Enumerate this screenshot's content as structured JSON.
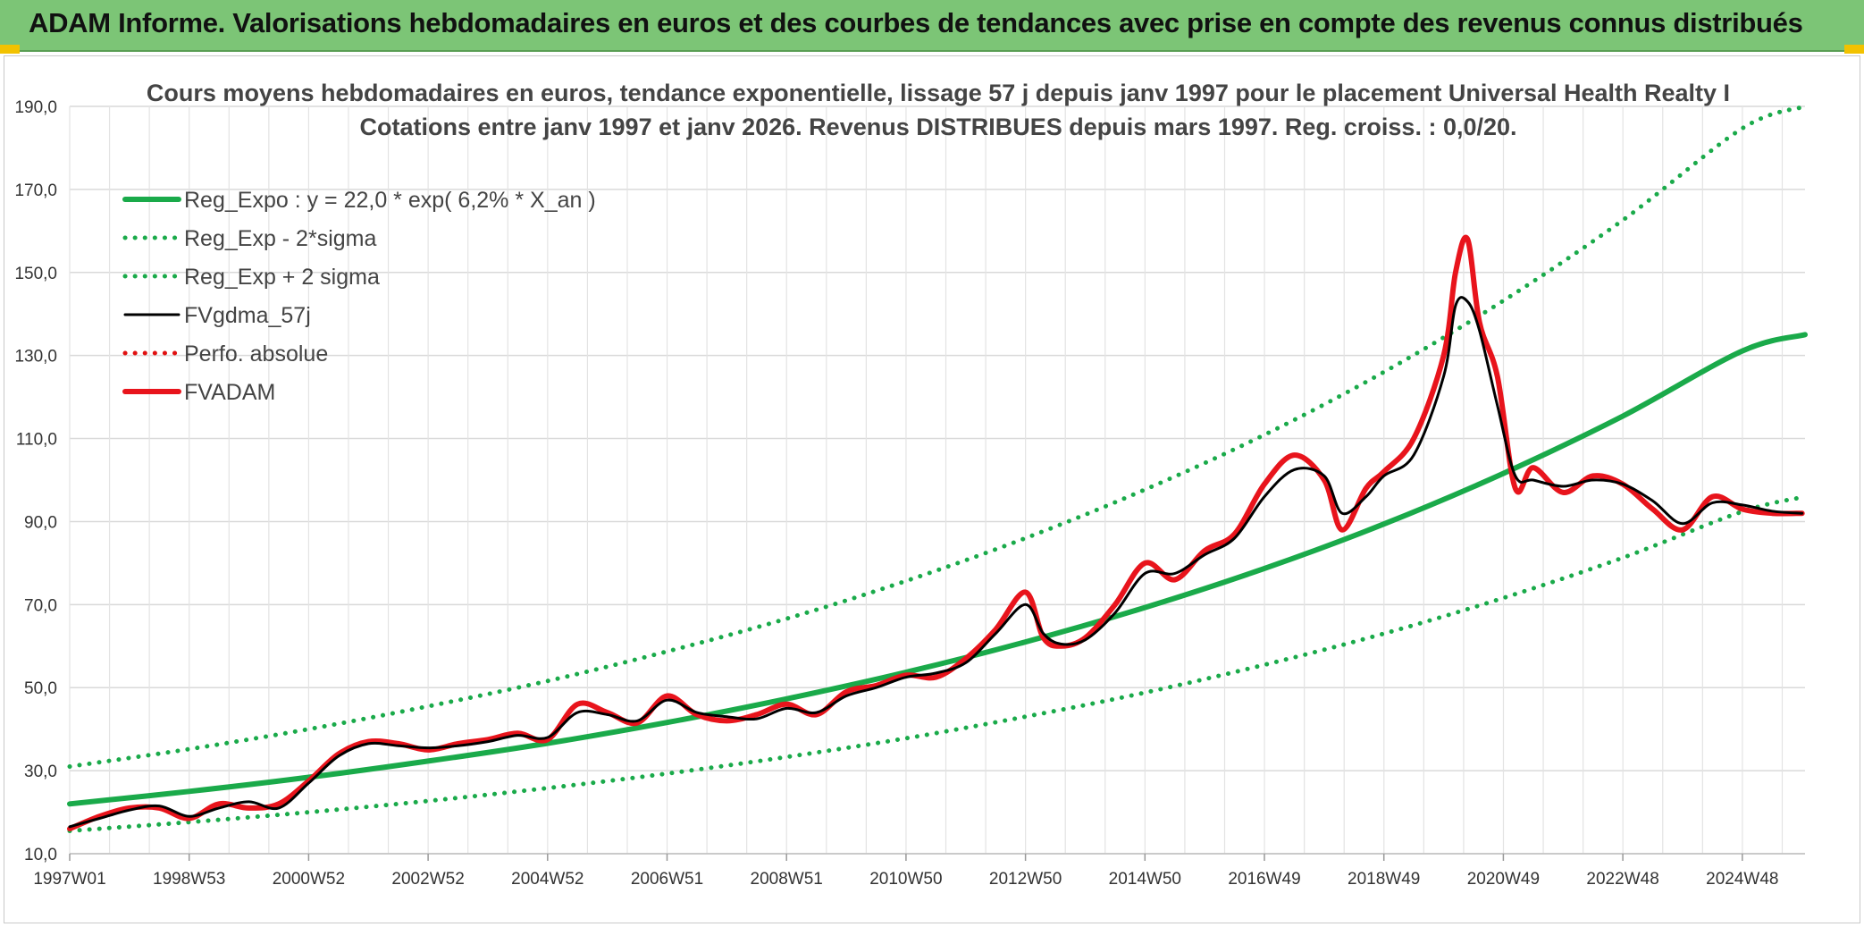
{
  "header": {
    "title": "ADAM Informe. Valorisations hebdomadaires en euros et des courbes de tendances avec prise en compte des revenus connus distribués"
  },
  "chart_data": {
    "type": "line",
    "title_lines": [
      "Cours moyens hebdomadaires en euros, tendance exponentielle, lissage 57 j depuis janv 1997 pour le placement Universal Health Realty I",
      "Cotations entre janv 1997 et janv 2026. Revenus DISTRIBUES depuis mars 1997. Reg. croiss. : 0,0/20."
    ],
    "ylim": [
      10,
      190
    ],
    "yticks": [
      "10,0",
      "30,0",
      "50,0",
      "70,0",
      "90,0",
      "110,0",
      "130,0",
      "150,0",
      "170,0",
      "190,0"
    ],
    "xlim": [
      1997.0,
      2026.05
    ],
    "xticks": [
      {
        "label": "1997W01",
        "x": 1997.0
      },
      {
        "label": "1998W53",
        "x": 1999.0
      },
      {
        "label": "2000W52",
        "x": 2001.0
      },
      {
        "label": "2002W52",
        "x": 2003.0
      },
      {
        "label": "2004W52",
        "x": 2005.0
      },
      {
        "label": "2006W51",
        "x": 2007.0
      },
      {
        "label": "2008W51",
        "x": 2009.0
      },
      {
        "label": "2010W50",
        "x": 2011.0
      },
      {
        "label": "2012W50",
        "x": 2013.0
      },
      {
        "label": "2014W50",
        "x": 2015.0
      },
      {
        "label": "2016W49",
        "x": 2017.0
      },
      {
        "label": "2018W49",
        "x": 2019.0
      },
      {
        "label": "2020W49",
        "x": 2021.0
      },
      {
        "label": "2022W48",
        "x": 2023.0
      },
      {
        "label": "2024W48",
        "x": 2025.0
      }
    ],
    "grid": true,
    "legend_position": "top-left",
    "series": [
      {
        "name": "Reg_Expo : y = 22,0 * exp( 6,2% *  X_an )",
        "color": "#1aaa4a",
        "style": "solid-thick",
        "x": [
          1997,
          1999,
          2001,
          2003,
          2005,
          2007,
          2009,
          2011,
          2013,
          2015,
          2017,
          2019,
          2021,
          2023,
          2025,
          2026.05
        ],
        "values": [
          22.0,
          25.0,
          28.4,
          32.3,
          36.6,
          41.6,
          47.3,
          53.7,
          61.0,
          69.3,
          78.7,
          89.4,
          101.6,
          115.4,
          131.1,
          135.0
        ]
      },
      {
        "name": "Reg_Exp - 2*sigma",
        "color": "#1aaa4a",
        "style": "dotted",
        "x": [
          1997,
          1999,
          2001,
          2003,
          2005,
          2007,
          2009,
          2011,
          2013,
          2015,
          2017,
          2019,
          2021,
          2023,
          2025,
          2026.05
        ],
        "values": [
          15.5,
          17.6,
          20.0,
          22.7,
          25.8,
          29.3,
          33.3,
          37.8,
          43.0,
          48.8,
          55.5,
          63.0,
          71.6,
          81.3,
          92.4,
          96.0
        ]
      },
      {
        "name": "Reg_Exp + 2 sigma",
        "color": "#1aaa4a",
        "style": "dotted",
        "x": [
          1997,
          1999,
          2001,
          2003,
          2005,
          2007,
          2009,
          2011,
          2013,
          2015,
          2017,
          2019,
          2021,
          2023,
          2025,
          2026.05
        ],
        "values": [
          31.0,
          35.2,
          40.0,
          45.5,
          51.6,
          58.7,
          66.6,
          75.7,
          86.0,
          97.7,
          110.9,
          126.0,
          143.2,
          162.6,
          184.7,
          190.0
        ]
      },
      {
        "name": "FVgdma_57j",
        "color": "#000000",
        "style": "solid",
        "x": [
          1997.0,
          1997.5,
          1998.0,
          1998.5,
          1999.0,
          1999.5,
          2000.0,
          2000.5,
          2001.0,
          2001.5,
          2002.0,
          2002.5,
          2003.0,
          2003.5,
          2004.0,
          2004.5,
          2005.0,
          2005.5,
          2006.0,
          2006.5,
          2007.0,
          2007.5,
          2008.0,
          2008.5,
          2009.0,
          2009.5,
          2010.0,
          2010.5,
          2011.0,
          2011.5,
          2012.0,
          2012.5,
          2013.0,
          2013.3,
          2013.6,
          2014.0,
          2014.5,
          2015.0,
          2015.5,
          2016.0,
          2016.5,
          2017.0,
          2017.5,
          2018.0,
          2018.3,
          2018.7,
          2019.0,
          2019.5,
          2020.0,
          2020.2,
          2020.4,
          2020.6,
          2020.9,
          2021.2,
          2021.5,
          2022.0,
          2022.5,
          2023.0,
          2023.5,
          2024.0,
          2024.5,
          2025.0,
          2025.5,
          2026.0
        ],
        "values": [
          16.5,
          18.5,
          20.5,
          21.5,
          19.0,
          21.0,
          22.5,
          21.0,
          27.0,
          33.5,
          36.5,
          36.0,
          35.5,
          36.0,
          37.0,
          38.5,
          38.0,
          44.0,
          43.5,
          42.0,
          47.0,
          44.0,
          43.0,
          42.5,
          45.0,
          44.0,
          48.0,
          50.0,
          52.5,
          53.5,
          56.0,
          63.0,
          70.0,
          63.0,
          60.5,
          61.5,
          68.0,
          77.5,
          77.5,
          82.0,
          86.0,
          96.0,
          102.5,
          101.0,
          92.0,
          96.0,
          101.0,
          106.0,
          125.0,
          142.0,
          143.0,
          136.0,
          118.0,
          101.0,
          100.0,
          98.5,
          100.0,
          99.0,
          95.0,
          89.5,
          94.5,
          94.0,
          92.5,
          92.0
        ]
      },
      {
        "name": "Perfo. absolue",
        "color": "#e01010",
        "style": "dotted",
        "x": [],
        "values": []
      },
      {
        "name": "FVADAM",
        "color": "#e8141c",
        "style": "solid-thick",
        "x": [
          1997.0,
          1997.5,
          1998.0,
          1998.5,
          1999.0,
          1999.5,
          2000.0,
          2000.5,
          2001.0,
          2001.5,
          2002.0,
          2002.5,
          2003.0,
          2003.5,
          2004.0,
          2004.5,
          2005.0,
          2005.5,
          2006.0,
          2006.5,
          2007.0,
          2007.5,
          2008.0,
          2008.5,
          2009.0,
          2009.5,
          2010.0,
          2010.5,
          2011.0,
          2011.5,
          2012.0,
          2012.5,
          2013.0,
          2013.3,
          2013.6,
          2014.0,
          2014.5,
          2015.0,
          2015.5,
          2016.0,
          2016.5,
          2017.0,
          2017.5,
          2018.0,
          2018.3,
          2018.7,
          2019.0,
          2019.5,
          2020.0,
          2020.2,
          2020.4,
          2020.6,
          2020.9,
          2021.2,
          2021.5,
          2022.0,
          2022.5,
          2023.0,
          2023.5,
          2024.0,
          2024.5,
          2025.0,
          2025.5,
          2026.0
        ],
        "values": [
          16.0,
          19.0,
          21.0,
          21.0,
          18.5,
          22.0,
          21.0,
          22.0,
          27.5,
          34.0,
          37.0,
          36.5,
          35.0,
          36.5,
          37.5,
          39.0,
          37.5,
          46.0,
          44.0,
          41.5,
          48.0,
          43.5,
          42.0,
          43.5,
          46.0,
          43.5,
          49.0,
          50.5,
          53.0,
          52.5,
          57.0,
          64.0,
          73.0,
          62.0,
          60.0,
          62.0,
          70.0,
          80.0,
          76.0,
          83.0,
          87.0,
          99.0,
          106.0,
          100.0,
          88.0,
          98.0,
          102.0,
          110.0,
          130.0,
          150.0,
          158.0,
          138.0,
          125.0,
          98.0,
          103.0,
          97.0,
          101.0,
          99.0,
          93.0,
          88.0,
          96.0,
          93.0,
          92.0,
          92.0
        ]
      }
    ]
  }
}
